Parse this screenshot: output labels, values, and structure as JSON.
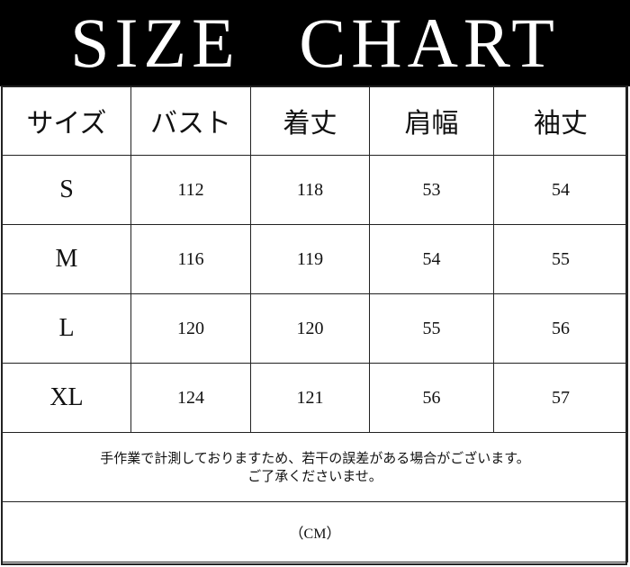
{
  "title": "SIZE CHART",
  "headers": [
    "サイズ",
    "バスト",
    "着丈",
    "肩幅",
    "袖丈"
  ],
  "rows": [
    {
      "size": "S",
      "bust": "112",
      "length": "118",
      "shoulder": "53",
      "sleeve": "54"
    },
    {
      "size": "M",
      "bust": "116",
      "length": "119",
      "shoulder": "54",
      "sleeve": "55"
    },
    {
      "size": "L",
      "bust": "120",
      "length": "120",
      "shoulder": "55",
      "sleeve": "56"
    },
    {
      "size": "XL",
      "bust": "124",
      "length": "121",
      "shoulder": "56",
      "sleeve": "57"
    }
  ],
  "note": {
    "line1": "手作業で計測しておりますため、若干の誤差がある場合がございます。",
    "line2": "ご了承くださいませ。"
  },
  "unit": "（CM）"
}
